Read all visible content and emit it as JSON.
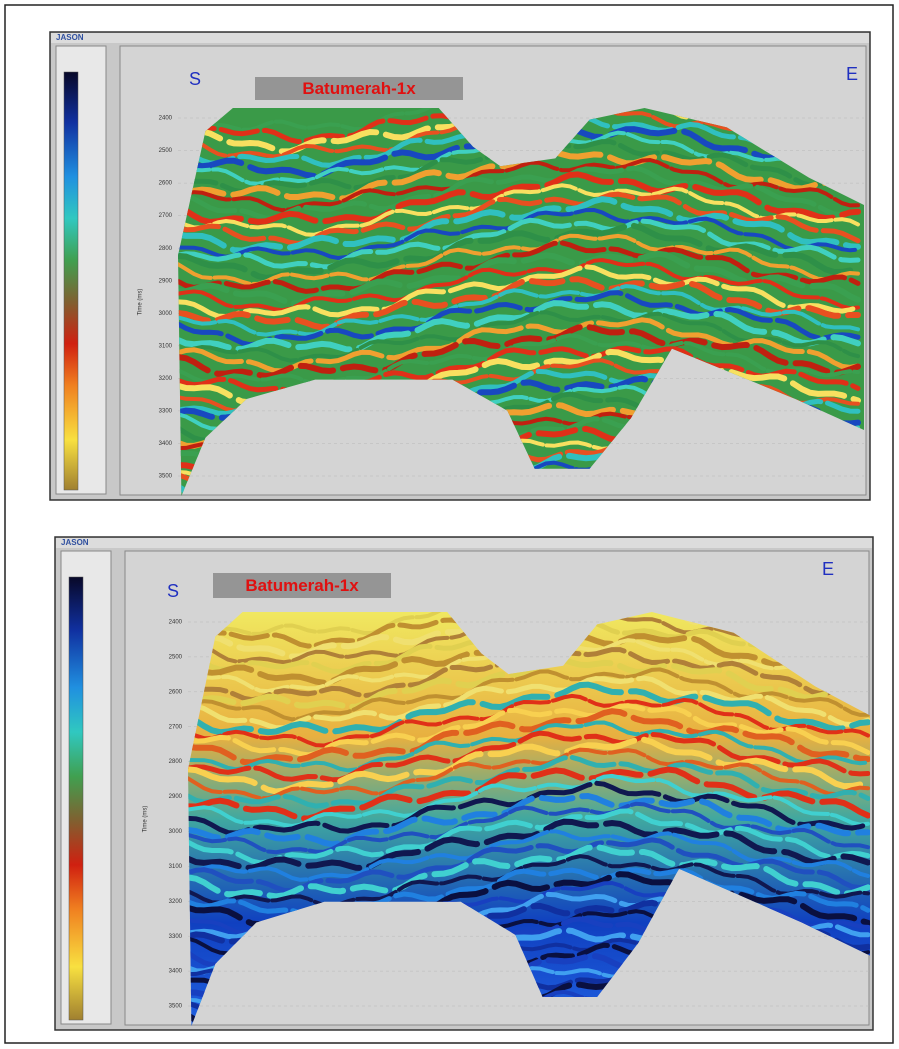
{
  "panels": [
    {
      "logo": "JASON",
      "west": "S",
      "east": "E",
      "well": "Batumerah-1x",
      "axis_label": "Time (ms)",
      "time_ticks": [
        "2400",
        "2500",
        "2600",
        "2700",
        "2800",
        "2900",
        "3000",
        "3100",
        "3200",
        "3300",
        "3400",
        "3500"
      ]
    },
    {
      "logo": "JASON",
      "west": "S",
      "east": "E",
      "well": "Batumerah-1x",
      "axis_label": "Time (ms)",
      "time_ticks": [
        "2400",
        "2500",
        "2600",
        "2700",
        "2800",
        "2900",
        "3000",
        "3100",
        "3200",
        "3300",
        "3400",
        "3500"
      ]
    }
  ]
}
